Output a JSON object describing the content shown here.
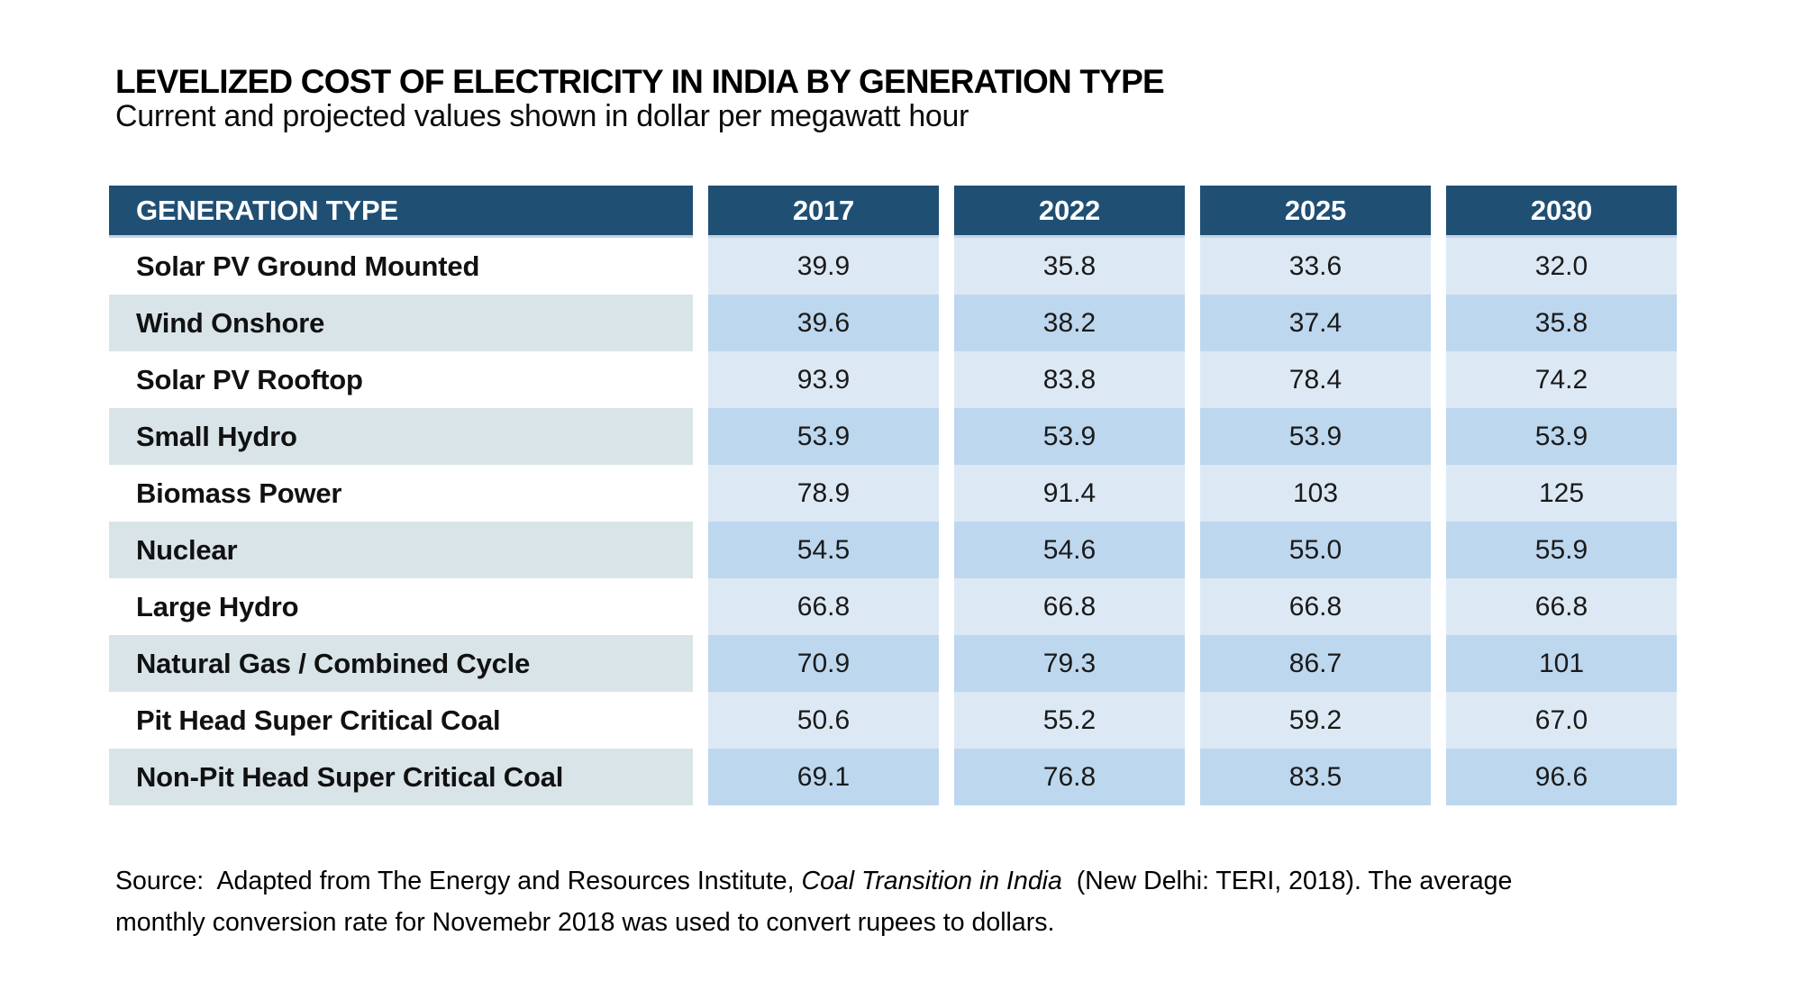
{
  "header": {
    "title": "LEVELIZED COST OF ELECTRICITY IN INDIA BY GENERATION TYPE",
    "subtitle": "Current and projected values shown in dollar per megawatt hour"
  },
  "chart_data": {
    "type": "table",
    "title": "LEVELIZED COST OF ELECTRICITY IN INDIA BY GENERATION TYPE",
    "subtitle": "Current and projected values shown in dollar per megawatt hour",
    "unit": "dollar per megawatt hour",
    "columns": [
      "GENERATION TYPE",
      "2017",
      "2022",
      "2025",
      "2030"
    ],
    "rows": [
      {
        "label": "Solar PV Ground Mounted",
        "values": [
          "39.9",
          "35.8",
          "33.6",
          "32.0"
        ]
      },
      {
        "label": "Wind Onshore",
        "values": [
          "39.6",
          "38.2",
          "37.4",
          "35.8"
        ]
      },
      {
        "label": "Solar PV Rooftop",
        "values": [
          "93.9",
          "83.8",
          "78.4",
          "74.2"
        ]
      },
      {
        "label": "Small Hydro",
        "values": [
          "53.9",
          "53.9",
          "53.9",
          "53.9"
        ]
      },
      {
        "label": "Biomass Power",
        "values": [
          "78.9",
          "91.4",
          "103",
          "125"
        ]
      },
      {
        "label": "Nuclear",
        "values": [
          "54.5",
          "54.6",
          "55.0",
          "55.9"
        ]
      },
      {
        "label": "Large Hydro",
        "values": [
          "66.8",
          "66.8",
          "66.8",
          "66.8"
        ]
      },
      {
        "label": "Natural Gas / Combined Cycle",
        "values": [
          "70.9",
          "79.3",
          "86.7",
          "101"
        ]
      },
      {
        "label": "Pit Head Super Critical Coal",
        "values": [
          "50.6",
          "55.2",
          "59.2",
          "67.0"
        ]
      },
      {
        "label": "Non-Pit Head Super Critical Coal",
        "values": [
          "69.1",
          "76.8",
          "83.5",
          "96.6"
        ]
      }
    ]
  },
  "source": {
    "line1_prefix": "Source:  Adapted from The Energy and Resources Institute, ",
    "line1_italic": "Coal Transition in India",
    "line1_suffix": "  (New Delhi: TERI, 2018). The average",
    "line2": "monthly conversion rate for Novemebr 2018 was used to convert rupees to dollars."
  },
  "colors": {
    "header_bg": "#204F74",
    "header_underline": "#C3D5E5",
    "row_light_blue": "#DCE9F5",
    "row_medium_blue": "#BDD7EE",
    "row_gray": "#D9E4E8",
    "background": "#FFFFFF"
  }
}
